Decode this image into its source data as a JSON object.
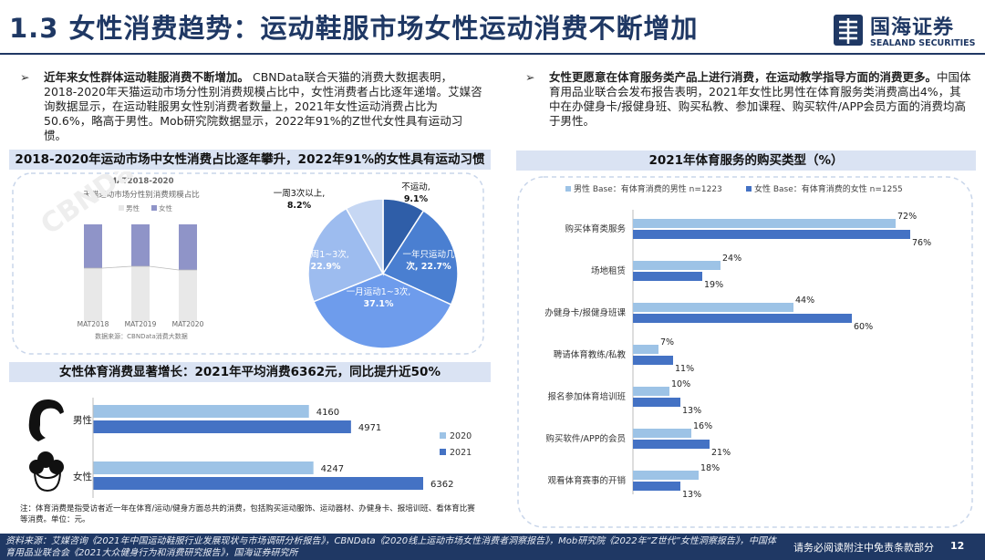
{
  "header": {
    "title": "1.3 女性消费趋势：运动鞋服市场女性运动消费不断增加",
    "logo_cn": "国海证券",
    "logo_en": "SEALAND SECURITIES"
  },
  "left": {
    "bullet_bold": "近年来女性群体运动鞋服消费不断增加。",
    "bullet_text": "CBNData联合天猫的消费大数据表明，2018-2020年天猫运动市场分性别消费规模占比中，女性消费者占比逐年递增。艾媒咨询数据显示，在运动鞋服男女性别消费者数量上，2021年女性运动消费占比为50.6%，略高于男性。Mob研究院数据显示，2022年91%的Z世代女性具有运动习惯。",
    "band1": "2018-2020年运动市场中女性消费占比逐年攀升，2022年91%的女性具有运动习惯",
    "band2": "女性体育消费显著增长：2021年平均消费6362元，同比提升近50%",
    "note": "注：体育消费是指受访者近一年在体育/运动/健身方面总共的消费，包括购买运动服饰、运动器材、办健身卡、报培训班、看体育比赛等消费。单位：元。"
  },
  "right": {
    "bullet_bold": "女性更愿意在体育服务类产品上进行消费，在运动教学指导方面的消费更多。",
    "bullet_text": "中国体育用品业联合会发布报告表明，2021年女性比男性在体育服务类消费高出4%，其中在办健身卡/报健身班、购买私教、参加课程、购买软件/APP会员方面的消费均高于男性。",
    "band": "2021年体育服务的购买类型（%）"
  },
  "chart_data": [
    {
      "type": "bar",
      "title": "MAT2018-2020天猫运动市场分性别消费规模占比",
      "legend": [
        "男性",
        "女性"
      ],
      "categories": [
        "MAT2018",
        "MAT2019",
        "MAT2020"
      ],
      "source": "数据来源：CBNData消费大数据",
      "watermark": "CBNData"
    },
    {
      "type": "pie",
      "labels": [
        "不运动",
        "一年只运动几次",
        "一月运动1~3次",
        "一周1~3次",
        "一周3次以上"
      ],
      "label_lines": [
        [
          "不运动,",
          "9.1%"
        ],
        [
          "一年只运动几",
          "次, 22.7%"
        ],
        [
          "一月运动1~3次,",
          "37.1%"
        ],
        [
          "一周1~3次,",
          "22.9%"
        ],
        [
          "一周3次以上,",
          "8.2%"
        ]
      ],
      "values": [
        9.1,
        22.7,
        37.1,
        22.9,
        8.2
      ],
      "colors": [
        "#2f5ea8",
        "#4a7fd1",
        "#6e9cec",
        "#9dbcef",
        "#c6d7f3"
      ]
    },
    {
      "type": "bar",
      "orientation": "horizontal",
      "categories": [
        "男性",
        "女性"
      ],
      "series": [
        {
          "name": "2020",
          "values": [
            4160,
            4247
          ],
          "color": "#9dc3e6"
        },
        {
          "name": "2021",
          "values": [
            4971,
            6362
          ],
          "color": "#4472c4"
        }
      ]
    },
    {
      "type": "bar",
      "orientation": "horizontal",
      "categories": [
        "购买体育类服务",
        "场地租赁",
        "办健身卡/报健身班课",
        "聘请体育教练/私教",
        "报名参加体育培训班",
        "购买软件/APP的会员",
        "观看体育赛事的开销"
      ],
      "series": [
        {
          "name": "男性 Base：有体育消费的男性 n=1223",
          "values": [
            72,
            24,
            44,
            7,
            10,
            16,
            18
          ],
          "color": "#9dc3e6"
        },
        {
          "name": "女性 Base：有体育消费的女性 n=1255",
          "values": [
            76,
            19,
            60,
            11,
            13,
            21,
            13
          ],
          "color": "#4472c4"
        }
      ]
    }
  ],
  "footer": {
    "source": "资料来源：艾媒咨询《2021年中国运动鞋服行业发展现状与市场调研分析报告》，CBNData《2020线上运动市场女性消费者洞察报告》，Mob研究院《2022年“Z世代”女性洞察报告》，中国体育用品业联合会《2021大众健身行为和消费研究报告》，国海证券研究所",
    "disclaimer": "请务必阅读附注中免责条款部分",
    "page": "12"
  }
}
